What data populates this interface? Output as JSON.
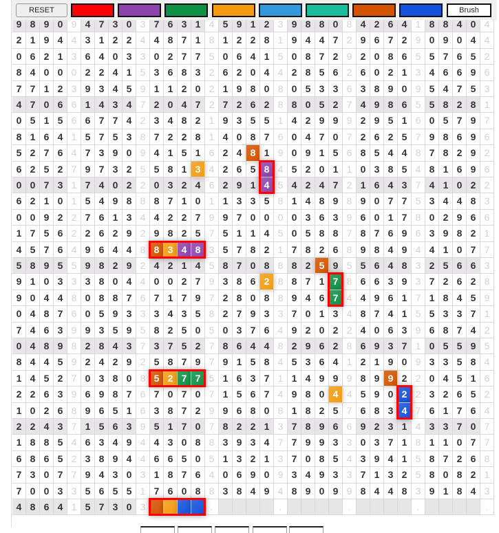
{
  "toolbar": {
    "reset_label": "RESET",
    "brush_label": "Brush",
    "palette": [
      {
        "name": "red",
        "color": "#ff0000"
      },
      {
        "name": "purple",
        "color": "#8e44ad"
      },
      {
        "name": "green",
        "color": "#0e9146"
      },
      {
        "name": "orange",
        "color": "#f39c12"
      },
      {
        "name": "light-blue",
        "color": "#3498db"
      },
      {
        "name": "teal",
        "color": "#1abc9c"
      },
      {
        "name": "dark-orange",
        "color": "#d35400"
      },
      {
        "name": "blue",
        "color": "#1452dc"
      }
    ]
  },
  "grid": {
    "shaded_rows": [
      1,
      6,
      11,
      16,
      21,
      26,
      31
    ],
    "separator_every": 5,
    "rows": [
      "98909 47303 76314 59123 98808 42641 88404",
      "21944 31224 48718 12281 94472 96729 09044",
      "06213 64033 02775 06415 08729 20865 57652",
      "84000 22415 36832 62044 28562 60213 46696",
      "77123 93459 11202 19808 05336 38909 54753",
      "47066 14347 20472 72628 80527 49865 58281",
      "05156 67742 34821 93551 42999 29516 05797",
      "81641 57538 72281 40876 04707 26257 98696",
      "52764 73909 41516 24819 09156 85448 78292",
      "62527 97325 58134 26584 52011 03854 81696",
      "00731 74022 03246 29145 42472 16437 41022",
      "62101 54988 87101 13358 14898 90775 34483",
      "00922 76134 42279 97000 03639 60178 02966",
      "17562 26292 98257 51145 05887 87696 39821",
      "45764 96448 83483 57821 78268 98494 41077",
      "58955 98292 42145 87088 82595 56483 25663",
      "91033 38044 00279 38628 87178 66393 72628",
      "90448 08876 71797 28088 94674 49617 18459",
      "04876 05933 34358 27933 70134 87415 53371",
      "74639 93595 82505 03764 92022 40639 68742",
      "04898 28437 37527 86448 29628 69371 05595",
      "84459 24292 58797 91584 53641 21909 33584",
      "14527 03808 52775 16371 14999 89922 04516",
      "22639 69876 70707 15674 98044 59022 32652",
      "10268 96516 38729 96808 18257 68347 61764",
      "22437 15639 51707 82213 78966 92314 33707",
      "18854 63494 43088 39347 79933 03718 11077",
      "68652 38944 66505 13213 70854 39415 87268",
      "73077 94303 18764 06909 34933 71325 80821",
      "70033 56551 76088 38494 89099 84483 91843",
      "48641 57303 ____. ____. ____. ____. ____."
    ],
    "highlights": [
      {
        "row": 9,
        "col": 18,
        "color": "#d35400"
      },
      {
        "row": 10,
        "col": 14,
        "color": "#f39c12"
      },
      {
        "row": 10,
        "col": 19,
        "color": "#8e44ad"
      },
      {
        "row": 11,
        "col": 19,
        "color": "#8e44ad"
      },
      {
        "row": 15,
        "col": 11,
        "color": "#d35400"
      },
      {
        "row": 15,
        "col": 12,
        "color": "#f39c12"
      },
      {
        "row": 15,
        "col": 13,
        "color": "#8e44ad"
      },
      {
        "row": 15,
        "col": 14,
        "color": "#8e44ad"
      },
      {
        "row": 16,
        "col": 23,
        "color": "#d35400"
      },
      {
        "row": 17,
        "col": 19,
        "color": "#f39c12"
      },
      {
        "row": 17,
        "col": 24,
        "color": "#0e9146"
      },
      {
        "row": 18,
        "col": 24,
        "color": "#0e9146"
      },
      {
        "row": 23,
        "col": 11,
        "color": "#d35400"
      },
      {
        "row": 23,
        "col": 12,
        "color": "#f39c12"
      },
      {
        "row": 23,
        "col": 13,
        "color": "#0e9146"
      },
      {
        "row": 23,
        "col": 14,
        "color": "#0e9146"
      },
      {
        "row": 23,
        "col": 28,
        "color": "#d35400"
      },
      {
        "row": 24,
        "col": 24,
        "color": "#f39c12"
      },
      {
        "row": 24,
        "col": 29,
        "color": "#1452dc"
      },
      {
        "row": 25,
        "col": 29,
        "color": "#1452dc"
      },
      {
        "row": 31,
        "col": 11,
        "color": "#d35400"
      },
      {
        "row": 31,
        "col": 12,
        "color": "#f39c12"
      },
      {
        "row": 31,
        "col": 13,
        "color": "#1452dc"
      },
      {
        "row": 31,
        "col": 14,
        "color": "#1452dc"
      }
    ],
    "groups": [
      {
        "row": 10,
        "col": 19,
        "length": 2,
        "direction": "vertical"
      },
      {
        "row": 15,
        "col": 11,
        "length": 4,
        "direction": "horizontal"
      },
      {
        "row": 17,
        "col": 24,
        "length": 2,
        "direction": "vertical"
      },
      {
        "row": 23,
        "col": 11,
        "length": 4,
        "direction": "horizontal"
      },
      {
        "row": 24,
        "col": 29,
        "length": 2,
        "direction": "vertical"
      },
      {
        "row": 31,
        "col": 11,
        "length": 4,
        "direction": "horizontal"
      }
    ]
  }
}
